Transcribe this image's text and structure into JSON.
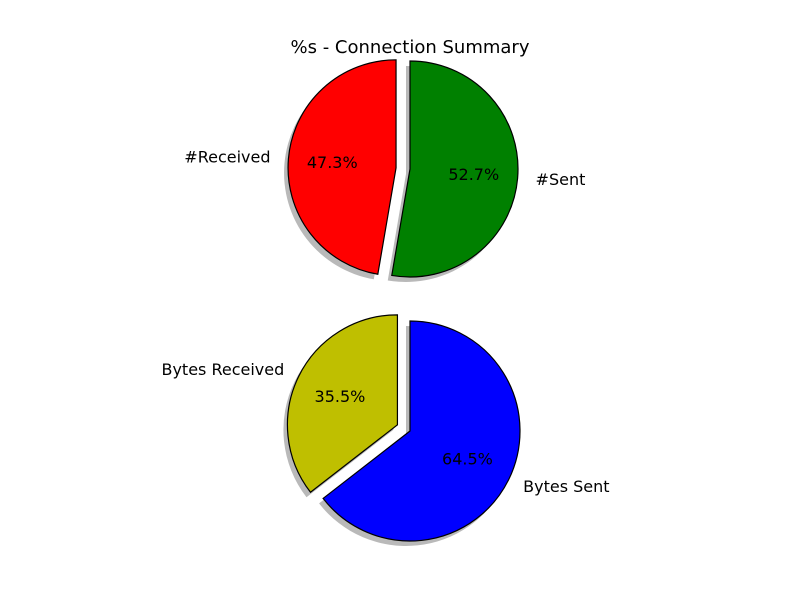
{
  "figure": {
    "title": "%s - Connection Summary",
    "background": "#ffffff"
  },
  "chart_data": [
    {
      "type": "pie",
      "title": "%s - Connection Summary",
      "labels": [
        "#Received",
        "#Sent"
      ],
      "values": [
        47.3,
        52.7
      ],
      "percent_labels": [
        "47.3%",
        "52.7%"
      ],
      "colors": [
        "#ff0000",
        "#008000"
      ],
      "exploded": [
        true,
        false
      ],
      "shadow": true,
      "edgecolor": "#000000",
      "start_angle_deg": 90
    },
    {
      "type": "pie",
      "labels": [
        "Bytes Received",
        "Bytes Sent"
      ],
      "values": [
        35.5,
        64.5
      ],
      "percent_labels": [
        "35.5%",
        "64.5%"
      ],
      "colors": [
        "#bfbf00",
        "#0000ff"
      ],
      "exploded": [
        true,
        false
      ],
      "shadow": true,
      "edgecolor": "#000000",
      "start_angle_deg": 90
    }
  ]
}
